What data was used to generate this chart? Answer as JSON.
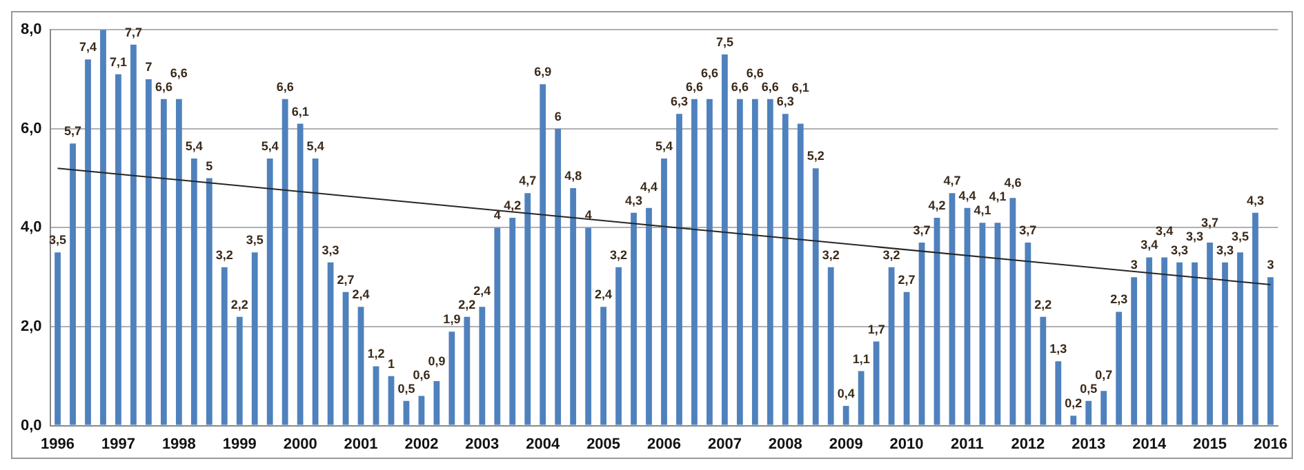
{
  "chart_data": {
    "type": "bar",
    "categories": [
      "1996",
      null,
      null,
      null,
      "1997",
      null,
      null,
      null,
      "1998",
      null,
      null,
      null,
      "1999",
      null,
      null,
      null,
      "2000",
      null,
      null,
      null,
      "2001",
      null,
      null,
      null,
      "2002",
      null,
      null,
      null,
      "2003",
      null,
      null,
      null,
      "2004",
      null,
      null,
      null,
      "2005",
      null,
      null,
      null,
      "2006",
      null,
      null,
      null,
      "2007",
      null,
      null,
      null,
      "2008",
      null,
      null,
      null,
      "2009",
      null,
      null,
      null,
      "2010",
      null,
      null,
      null,
      "2011",
      null,
      null,
      null,
      "2012",
      null,
      null,
      null,
      "2013",
      null,
      null,
      null,
      "2014",
      null,
      null,
      null,
      "2015",
      null,
      null,
      null,
      "2016"
    ],
    "series": [
      {
        "color": "#4f81bd",
        "values": [
          3.5,
          5.7,
          7.4,
          8,
          7.1,
          7.7,
          7,
          6.6,
          6.6,
          5.4,
          5,
          3.2,
          2.2,
          3.5,
          5.4,
          6.6,
          6.1,
          5.4,
          3.3,
          2.7,
          2.4,
          1.2,
          1,
          0.5,
          0.6,
          0.9,
          1.9,
          2.2,
          2.4,
          4,
          4.2,
          4.7,
          6.9,
          6,
          4.8,
          4,
          2.4,
          3.2,
          4.3,
          4.4,
          5.4,
          6.3,
          6.6,
          6.6,
          7.5,
          6.6,
          6.6,
          6.6,
          6.3,
          6.1,
          5.2,
          3.2,
          0.4,
          1.1,
          1.7,
          3.2,
          2.7,
          3.7,
          4.2,
          4.7,
          4.4,
          4.1,
          4.1,
          4.6,
          3.7,
          2.2,
          1.3,
          0.2,
          0.5,
          0.7,
          2.3,
          3,
          3.4,
          3.4,
          3.3,
          3.3,
          3.7,
          3.3,
          3.5,
          4.3,
          3
        ],
        "value_labels": [
          "3,5",
          "5,7",
          "7,4",
          null,
          "7,1",
          "7,7",
          "7",
          "6,6",
          "6,6",
          "5,4",
          "5",
          "3,2",
          "2,2",
          "3,5",
          "5,4",
          "6,6",
          "6,1",
          "5,4",
          "3,3",
          "2,7",
          "2,4",
          "1,2",
          "1",
          "0,5",
          "0,6",
          "0,9",
          "1,9",
          "2,2",
          "2,4",
          "4",
          "4,2",
          "4,7",
          "6,9",
          "6",
          "4,8",
          "4",
          "2,4",
          "3,2",
          "4,3",
          "4,4",
          "5,4",
          "6,3",
          "6,6",
          "6,6",
          "7,5",
          "6,6",
          "6,6",
          "6,6",
          "6,3",
          "6,1",
          "5,2",
          "3,2",
          "0,4",
          "1,1",
          "1,7",
          "3,2",
          "2,7",
          "3,7",
          "4,2",
          "4,7",
          "4,4",
          "4,1",
          "4,1",
          "4,6",
          "3,7",
          "2,2",
          "1,3",
          "0,2",
          "0,5",
          "0,7",
          "2,3",
          "3",
          "3,4",
          "3,4",
          "3,3",
          "3,3",
          "3,7",
          "3,3",
          "3,5",
          "4,3",
          "3"
        ]
      },
      {
        "type": "line",
        "color": "#262626",
        "values": [
          5.2,
          null,
          null,
          null,
          null,
          null,
          null,
          null,
          null,
          null,
          null,
          null,
          null,
          null,
          null,
          null,
          null,
          null,
          null,
          null,
          null,
          null,
          null,
          null,
          null,
          null,
          null,
          null,
          null,
          null,
          null,
          null,
          null,
          null,
          null,
          null,
          null,
          null,
          null,
          null,
          null,
          null,
          null,
          null,
          null,
          null,
          null,
          null,
          null,
          null,
          null,
          null,
          null,
          null,
          null,
          null,
          null,
          null,
          null,
          null,
          null,
          null,
          null,
          null,
          null,
          null,
          null,
          null,
          null,
          null,
          null,
          null,
          null,
          null,
          null,
          null,
          null,
          null,
          null,
          null,
          2.85
        ]
      }
    ],
    "ylim": [
      0,
      8
    ],
    "yticks": [
      {
        "value": 0,
        "label": "0,0"
      },
      {
        "value": 2,
        "label": "2,0"
      },
      {
        "value": 4,
        "label": "4,0"
      },
      {
        "value": 6,
        "label": "6,0"
      },
      {
        "value": 8,
        "label": "8,0"
      }
    ],
    "grid": "y",
    "legend": false
  }
}
